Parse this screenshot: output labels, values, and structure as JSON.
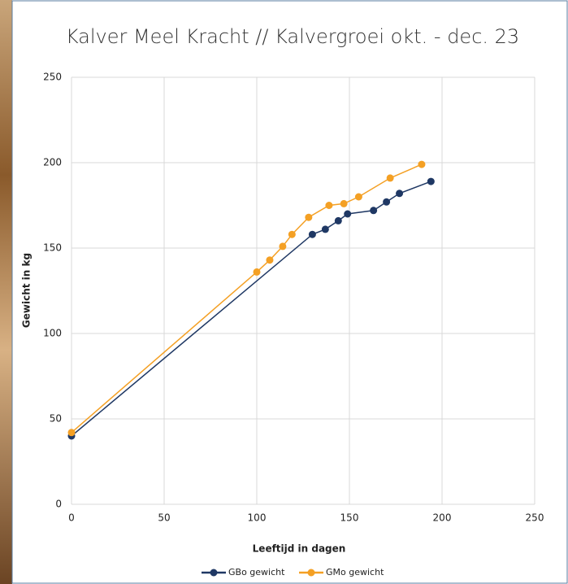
{
  "chart_data": {
    "type": "line",
    "title": "Kalver Meel Kracht // Kalvergroei okt. - dec. 23",
    "x_label": "Leeftijd in dagen",
    "y_label": "Gewicht in kg",
    "xlim": [
      0,
      250
    ],
    "xticks": [
      0,
      50,
      100,
      150,
      200,
      250
    ],
    "ylim": [
      0,
      250
    ],
    "yticks": [
      0,
      50,
      100,
      150,
      200,
      250
    ],
    "grid": true,
    "legend": "bottom",
    "series": [
      {
        "name": "GBo gewicht",
        "color": "#1f3864",
        "x": [
          0,
          130,
          137,
          144,
          149,
          163,
          170,
          177,
          194
        ],
        "values": [
          40,
          158,
          161,
          166,
          170,
          172,
          177,
          182,
          189
        ]
      },
      {
        "name": "GMo gewicht",
        "color": "#f4a024",
        "x": [
          0,
          100,
          107,
          114,
          119,
          128,
          139,
          147,
          155,
          172,
          189
        ],
        "values": [
          42,
          136,
          143,
          151,
          158,
          168,
          175,
          176,
          180,
          191,
          199
        ]
      }
    ]
  }
}
